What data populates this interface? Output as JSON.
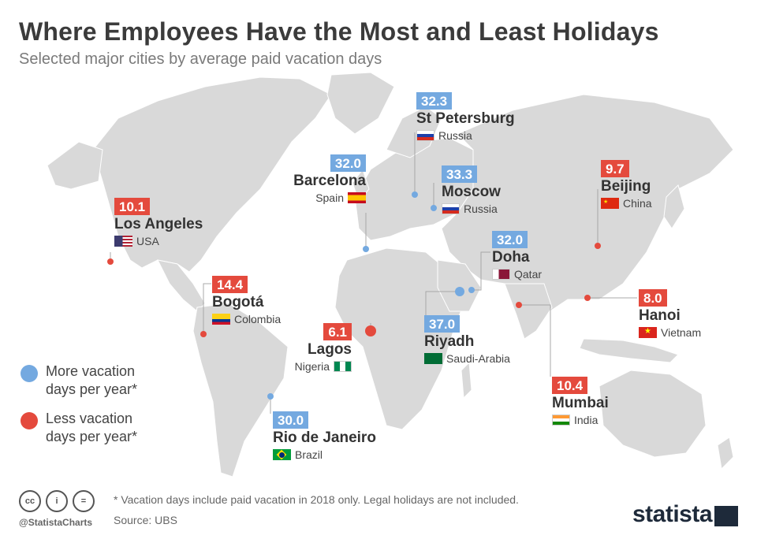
{
  "title": "Where Employees Have the Most and Least Holidays",
  "subtitle": "Selected major cities by average paid vacation days",
  "colors": {
    "more": "#74a9e0",
    "less": "#e44a3d",
    "land": "#d9d9d9",
    "border": "#ffffff"
  },
  "chart_data": {
    "type": "map",
    "unit": "average paid vacation days",
    "cities": [
      {
        "id": "st-petersburg",
        "city": "St Petersburg",
        "country": "Russia",
        "value": "32.3",
        "category": "more"
      },
      {
        "id": "barcelona",
        "city": "Barcelona",
        "country": "Spain",
        "value": "32.0",
        "category": "more"
      },
      {
        "id": "moscow",
        "city": "Moscow",
        "country": "Russia",
        "value": "33.3",
        "category": "more"
      },
      {
        "id": "beijing",
        "city": "Beijing",
        "country": "China",
        "value": "9.7",
        "category": "less"
      },
      {
        "id": "los-angeles",
        "city": "Los Angeles",
        "country": "USA",
        "value": "10.1",
        "category": "less"
      },
      {
        "id": "doha",
        "city": "Doha",
        "country": "Qatar",
        "value": "32.0",
        "category": "more"
      },
      {
        "id": "bogota",
        "city": "Bogotá",
        "country": "Colombia",
        "value": "14.4",
        "category": "less"
      },
      {
        "id": "hanoi",
        "city": "Hanoi",
        "country": "Vietnam",
        "value": "8.0",
        "category": "less"
      },
      {
        "id": "lagos",
        "city": "Lagos",
        "country": "Nigeria",
        "value": "6.1",
        "category": "less"
      },
      {
        "id": "riyadh",
        "city": "Riyadh",
        "country": "Saudi-Arabia",
        "value": "37.0",
        "category": "more"
      },
      {
        "id": "mumbai",
        "city": "Mumbai",
        "country": "India",
        "value": "10.4",
        "category": "less"
      },
      {
        "id": "rio",
        "city": "Rio de Janeiro",
        "country": "Brazil",
        "value": "30.0",
        "category": "more"
      }
    ]
  },
  "legend": {
    "more": [
      "More vacation",
      "days per year*"
    ],
    "less": [
      "Less vacation",
      "days per year*"
    ]
  },
  "footnote": "* Vacation days include paid vacation in 2018 only. Legal holidays are not included.",
  "source": "Source: UBS",
  "handle": "@StatistaCharts",
  "brand": "statista"
}
